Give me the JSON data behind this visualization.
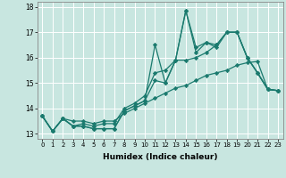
{
  "xlabel": "Humidex (Indice chaleur)",
  "ylabel": "",
  "xlim": [
    -0.5,
    23.5
  ],
  "ylim": [
    12.8,
    18.2
  ],
  "yticks": [
    13,
    14,
    15,
    16,
    17,
    18
  ],
  "xticks": [
    0,
    1,
    2,
    3,
    4,
    5,
    6,
    7,
    8,
    9,
    10,
    11,
    12,
    13,
    14,
    15,
    16,
    17,
    18,
    19,
    20,
    21,
    22,
    23
  ],
  "xtick_labels": [
    "0",
    "1",
    "2",
    "3",
    "4",
    "5",
    "6",
    "7",
    "8",
    "9",
    "10",
    "11",
    "12",
    "13",
    "14",
    "15",
    "16",
    "17",
    "18",
    "19",
    "20",
    "21",
    "22",
    "23"
  ],
  "background_color": "#c8e6e0",
  "grid_color": "#ffffff",
  "line_color": "#1a7a6e",
  "series": [
    [
      13.7,
      13.1,
      13.6,
      13.3,
      13.3,
      13.2,
      13.2,
      13.2,
      13.9,
      14.1,
      14.3,
      16.5,
      15.0,
      15.9,
      17.85,
      16.4,
      16.6,
      16.5,
      17.0,
      17.0,
      16.0,
      15.4,
      14.75,
      14.7
    ],
    [
      13.7,
      13.1,
      13.6,
      13.3,
      13.3,
      13.2,
      13.2,
      13.2,
      13.9,
      14.1,
      14.3,
      15.1,
      15.0,
      15.9,
      17.85,
      16.2,
      16.6,
      16.4,
      17.0,
      17.0,
      16.0,
      15.4,
      14.75,
      14.7
    ],
    [
      13.7,
      13.1,
      13.6,
      13.3,
      13.4,
      13.3,
      13.4,
      13.4,
      14.0,
      14.2,
      14.5,
      15.4,
      15.5,
      15.9,
      15.9,
      16.0,
      16.2,
      16.5,
      17.0,
      17.0,
      16.0,
      15.4,
      14.75,
      14.7
    ],
    [
      13.7,
      13.1,
      13.6,
      13.5,
      13.5,
      13.4,
      13.5,
      13.5,
      13.8,
      14.0,
      14.2,
      14.4,
      14.6,
      14.8,
      14.9,
      15.1,
      15.3,
      15.4,
      15.5,
      15.7,
      15.8,
      15.85,
      14.75,
      14.7
    ]
  ],
  "marker": "D",
  "markersize": 2.2,
  "linewidth": 0.9
}
